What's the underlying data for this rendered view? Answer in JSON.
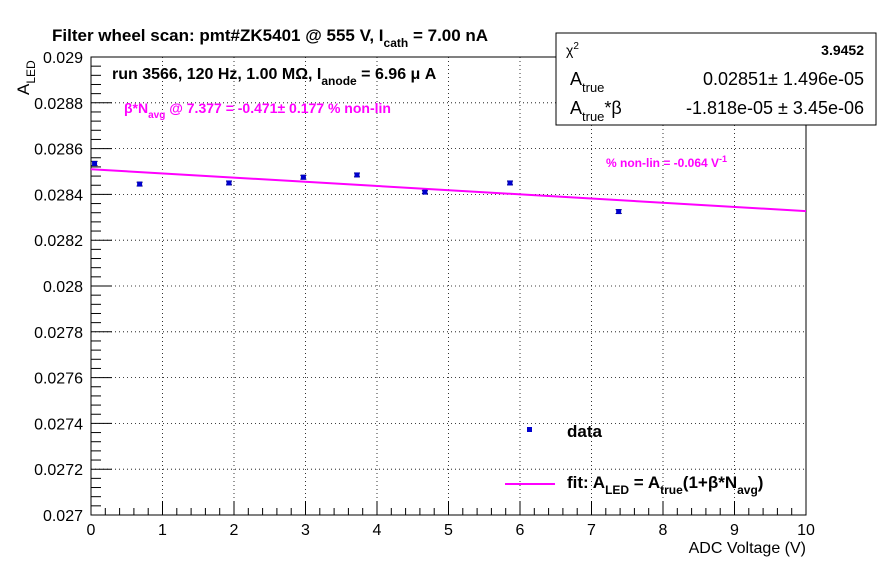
{
  "chart_data": {
    "type": "scatter",
    "title": {
      "prefix": "Filter wheel scan: pmt#ZK5401 @   555 V, I",
      "sub": "cath",
      "suffix": " = 7.00 nA"
    },
    "run_info": {
      "prefix": "run 3566, 120 Hz, 1.00 MΩ, I",
      "sub": "anode",
      "suffix": " = 6.96 μ A"
    },
    "nonlin_note": {
      "prefix": "β*N",
      "sub": "avg",
      "suffix": " @ 7.377 = -0.471± 0.177 % non-lin"
    },
    "slope_note": {
      "prefix": "% non-lin = -0.064 V",
      "sup": "-1"
    },
    "xlabel": "ADC Voltage (V)",
    "ylabel": {
      "main": "A",
      "sub": "LED"
    },
    "xlim": [
      0,
      10
    ],
    "ylim": [
      0.027,
      0.029
    ],
    "xticks": [
      "0",
      "1",
      "2",
      "3",
      "4",
      "5",
      "6",
      "7",
      "8",
      "9",
      "10"
    ],
    "yticks": [
      "0.027",
      "0.0272",
      "0.0274",
      "0.0276",
      "0.0278",
      "0.028",
      "0.0282",
      "0.0284",
      "0.0286",
      "0.0288",
      "0.029"
    ],
    "grid": true,
    "series": [
      {
        "name": "data",
        "x": [
          0.05,
          0.68,
          1.93,
          2.97,
          3.72,
          4.67,
          5.86,
          7.38
        ],
        "y": [
          0.028535,
          0.028445,
          0.02845,
          0.028475,
          0.028485,
          0.02841,
          0.02845,
          0.028325
        ],
        "yerr": [
          5e-06,
          4e-06,
          4e-06,
          4e-06,
          4e-06,
          2e-06,
          4e-06,
          4e-06
        ],
        "color": "#0000cc"
      }
    ],
    "fit": {
      "x": [
        0,
        10
      ],
      "y": [
        0.02851,
        0.028327
      ],
      "color": "#ff00ff"
    },
    "legend": {
      "placement": "bottom-right",
      "data_label": "data",
      "fit_label": {
        "p1": "fit: A",
        "s1": "LED",
        "p2": " = A",
        "s2": "true",
        "p3": "(1+β*N",
        "s3": "avg",
        "p4": ")"
      }
    },
    "stats": {
      "rows": [
        {
          "label": "χ",
          "label_sup": "2",
          "label_sub": "",
          "label_tail": "",
          "value": "3.9452"
        },
        {
          "label": "A",
          "label_sup": "",
          "label_sub": "true",
          "label_tail": "",
          "value": "0.02851± 1.496e-05"
        },
        {
          "label": "A",
          "label_sup": "",
          "label_sub": "true",
          "label_tail": "*β",
          "value": "-1.818e-05 ± 3.45e-06"
        }
      ]
    },
    "colors": {
      "data": "#0000cc",
      "fit": "#ff00ff",
      "annotation": "#ff00ff",
      "axis": "#000000"
    }
  }
}
